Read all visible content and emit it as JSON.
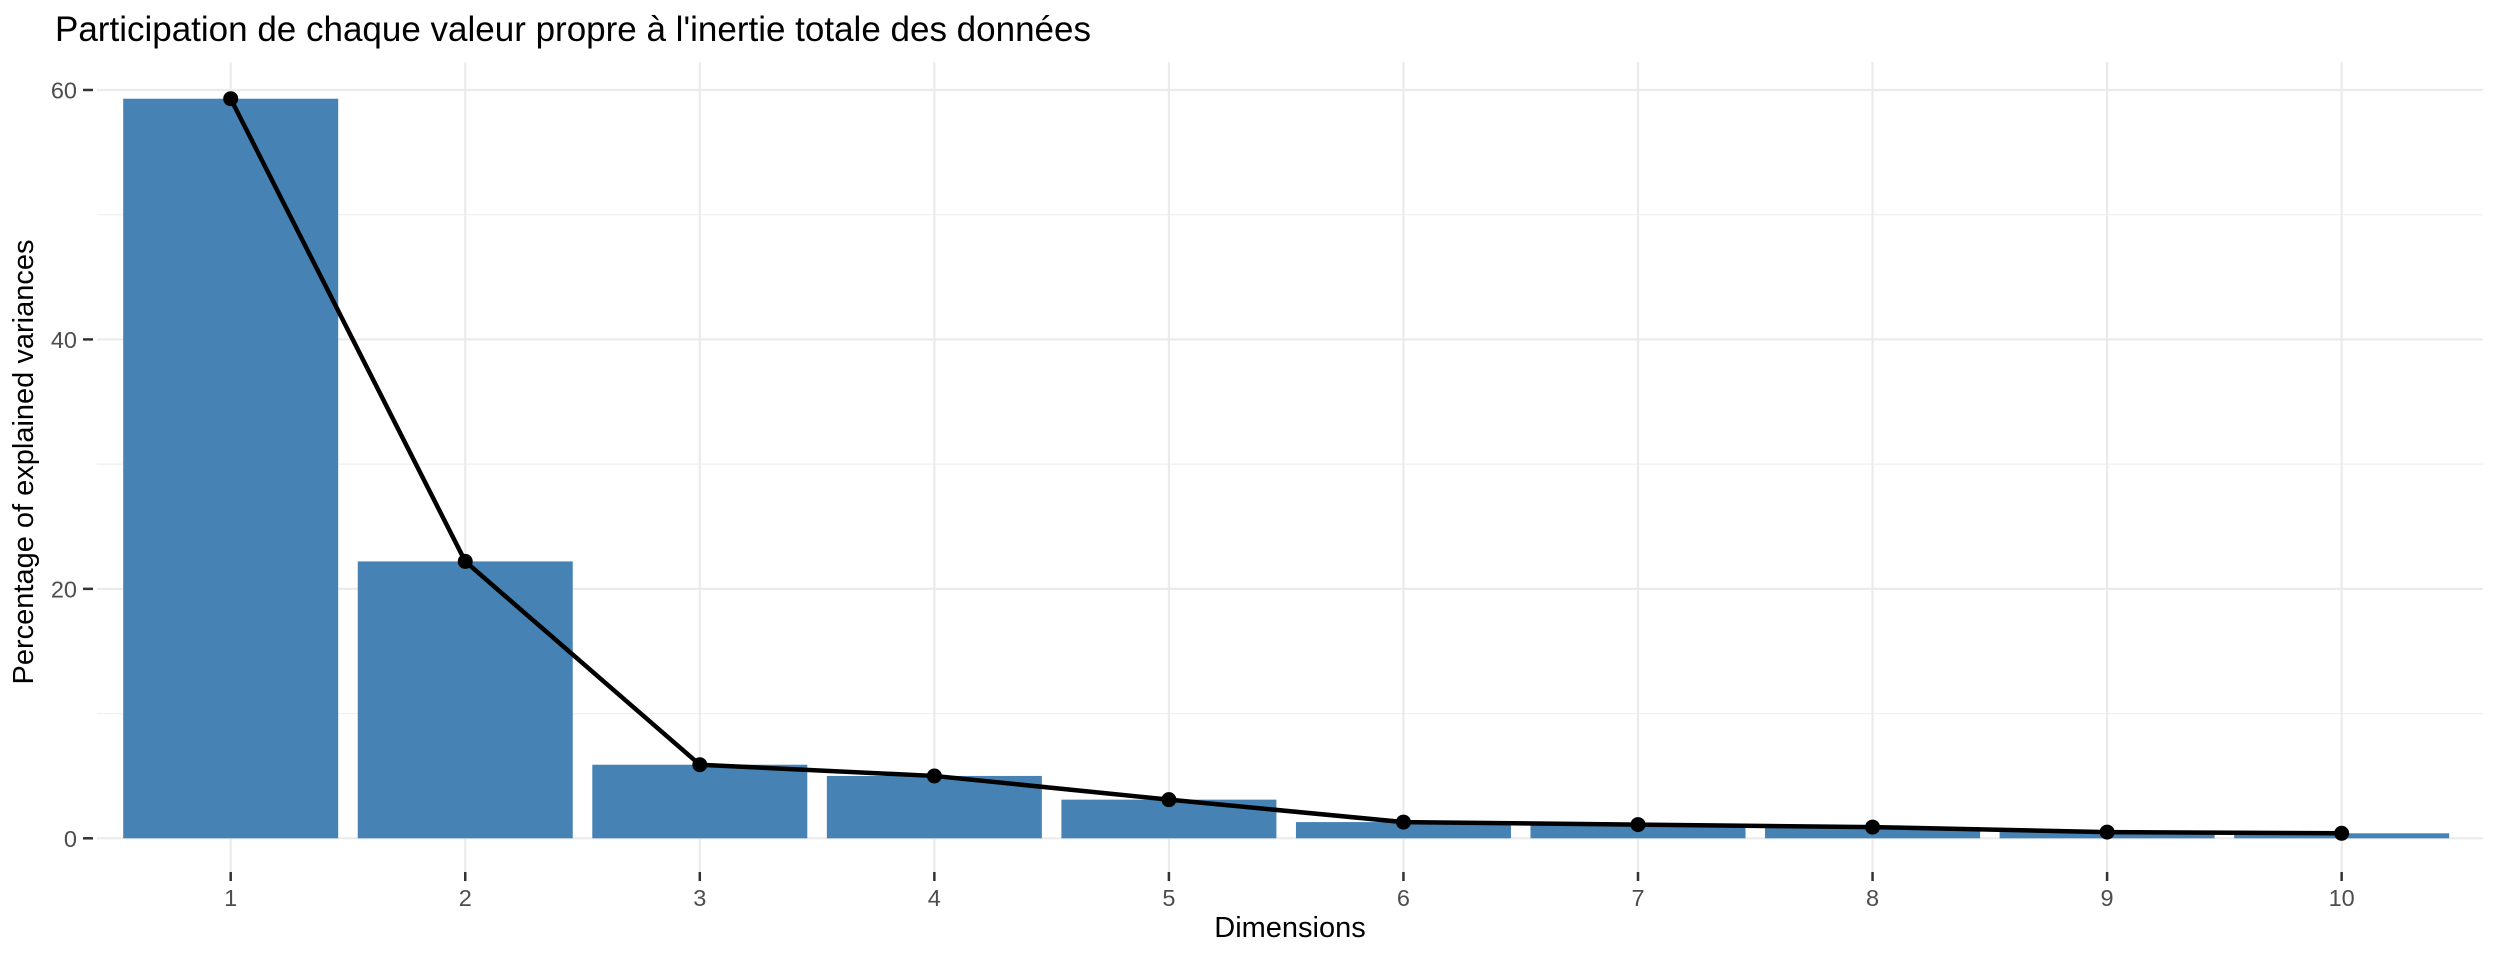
{
  "figure": {
    "background": "#FFFFFF"
  },
  "chart_data": {
    "type": "bar",
    "subtype": "scree-plot-with-line-overlay",
    "title": "Participation de chaque valeur propre à l'inertie totale des données",
    "xlabel": "Dimensions",
    "ylabel": "Percentage of explained variances",
    "categories": [
      "1",
      "2",
      "3",
      "4",
      "5",
      "6",
      "7",
      "8",
      "9",
      "10"
    ],
    "values": [
      59.3,
      22.2,
      5.9,
      5.0,
      3.1,
      1.3,
      1.1,
      0.9,
      0.5,
      0.4
    ],
    "series": [
      {
        "name": "bars-percentage-of-explained-variance",
        "type": "bar",
        "values": [
          59.3,
          22.2,
          5.9,
          5.0,
          3.1,
          1.3,
          1.1,
          0.9,
          0.5,
          0.4
        ]
      },
      {
        "name": "line-percentage-of-explained-variance",
        "type": "line-with-points",
        "values": [
          59.3,
          22.2,
          5.9,
          5.0,
          3.1,
          1.3,
          1.1,
          0.9,
          0.5,
          0.4
        ]
      }
    ],
    "y_major_ticks": [
      0,
      20,
      40,
      60
    ],
    "y_tick_labels": [
      "0",
      "20",
      "40",
      "60"
    ],
    "y_minor_gridlines": [
      10,
      30,
      50
    ],
    "ylim": [
      -2.7,
      62.3
    ],
    "grid": true,
    "legend": "none",
    "colors": {
      "bar_fill": "#4682B4",
      "line": "#000000",
      "point": "#000000",
      "grid_major": "#EBEBEB",
      "grid_minor": "#F1F1F1",
      "tick_mark": "#333333",
      "tick_label": "#4D4D4D",
      "title": "#000000",
      "axis_title": "#000000",
      "background": "#FFFFFF"
    }
  }
}
